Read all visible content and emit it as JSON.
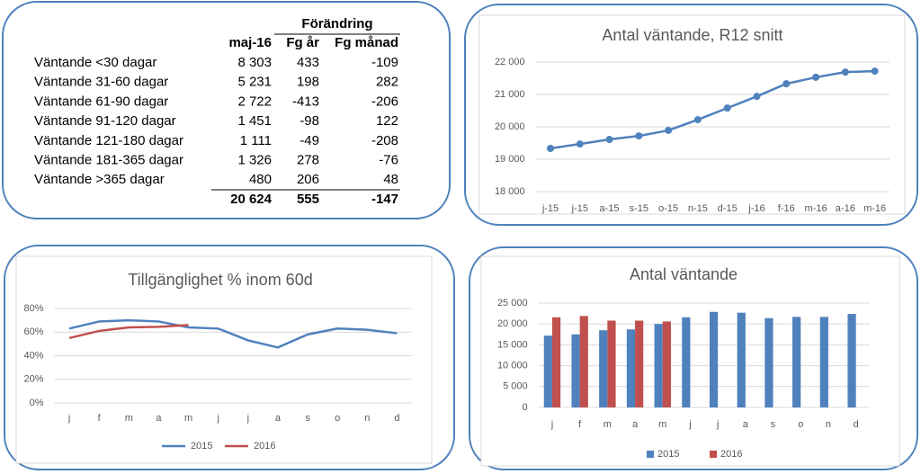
{
  "table": {
    "group_header": "Förändring",
    "columns": [
      "maj-16",
      "Fg år",
      "Fg månad"
    ],
    "rows": [
      [
        "Väntande <30 dagar",
        "8 303",
        "433",
        "-109"
      ],
      [
        "Väntande 31-60 dagar",
        "5 231",
        "198",
        "282"
      ],
      [
        "Väntande 61-90 dagar",
        "2 722",
        "-413",
        "-206"
      ],
      [
        "Väntande 91-120 dagar",
        "1 451",
        "-98",
        "122"
      ],
      [
        "Väntande 121-180 dagar",
        "1 111",
        "-49",
        "-208"
      ],
      [
        "Väntande 181-365 dagar",
        "1 326",
        "278",
        "-76"
      ],
      [
        "Väntande >365 dagar",
        "480",
        "206",
        "48"
      ]
    ],
    "total": [
      "20 624",
      "555",
      "-147"
    ]
  },
  "chart_data": [
    {
      "type": "line",
      "title": "Antal väntande, R12 snitt",
      "markers": true,
      "grid": true,
      "categories": [
        "j-15",
        "j-15",
        "a-15",
        "s-15",
        "o-15",
        "n-15",
        "d-15",
        "j-16",
        "f-16",
        "m-16",
        "a-16",
        "m-16"
      ],
      "series": [
        {
          "color": "#4f81bd",
          "values": [
            19333,
            19470,
            19610,
            19720,
            19890,
            20220,
            20580,
            20940,
            21330,
            21530,
            21690,
            21720
          ]
        }
      ],
      "ylim": [
        18000,
        22000
      ],
      "yticks": [
        {
          "value": 18000,
          "label": "18 000"
        },
        {
          "value": 19000,
          "label": "19 000"
        },
        {
          "value": 20000,
          "label": "20 000"
        },
        {
          "value": 21000,
          "label": "21 000"
        },
        {
          "value": 22000,
          "label": "22 000"
        }
      ]
    },
    {
      "type": "line",
      "title": "Tillgänglighet % inom 60d",
      "markers": false,
      "grid": true,
      "legend": "bottom",
      "categories": [
        "j",
        "f",
        "m",
        "a",
        "m",
        "j",
        "j",
        "a",
        "s",
        "o",
        "n",
        "d"
      ],
      "series": [
        {
          "name": "2015",
          "color": "#4f81bd",
          "values": [
            63,
            69,
            70,
            69,
            64,
            63,
            53,
            47,
            58,
            63,
            62,
            59
          ]
        },
        {
          "name": "2016",
          "color": "#c0504d",
          "values": [
            55,
            61,
            64,
            64.5,
            66,
            null,
            null,
            null,
            null,
            null,
            null,
            null
          ]
        }
      ],
      "ylim": [
        0,
        80
      ],
      "yticks": [
        {
          "value": 0,
          "label": "0%"
        },
        {
          "value": 20,
          "label": "20%"
        },
        {
          "value": 40,
          "label": "40%"
        },
        {
          "value": 60,
          "label": "60%"
        },
        {
          "value": 80,
          "label": "80%"
        }
      ]
    },
    {
      "type": "bar",
      "title": "Antal väntande",
      "grid": true,
      "legend": "bottom",
      "categories": [
        "j",
        "f",
        "m",
        "a",
        "m",
        "j",
        "j",
        "a",
        "s",
        "o",
        "n",
        "d"
      ],
      "series": [
        {
          "name": "2015",
          "color": "#4f81bd",
          "values": [
            17200,
            17500,
            18500,
            18700,
            20000,
            21600,
            22900,
            22700,
            21400,
            21700,
            21700,
            22400
          ]
        },
        {
          "name": "2016",
          "color": "#c0504d",
          "values": [
            21600,
            21900,
            20800,
            20800,
            20600,
            null,
            null,
            null,
            null,
            null,
            null,
            null
          ]
        }
      ],
      "ylim": [
        0,
        25000
      ],
      "yticks": [
        0,
        {
          "value": 5000,
          "label": "5 000"
        },
        {
          "value": 10000,
          "label": "10 000"
        },
        {
          "value": 15000,
          "label": "15 000"
        },
        {
          "value": 20000,
          "label": "20 000"
        },
        {
          "value": 25000,
          "label": "25 000"
        }
      ]
    }
  ]
}
